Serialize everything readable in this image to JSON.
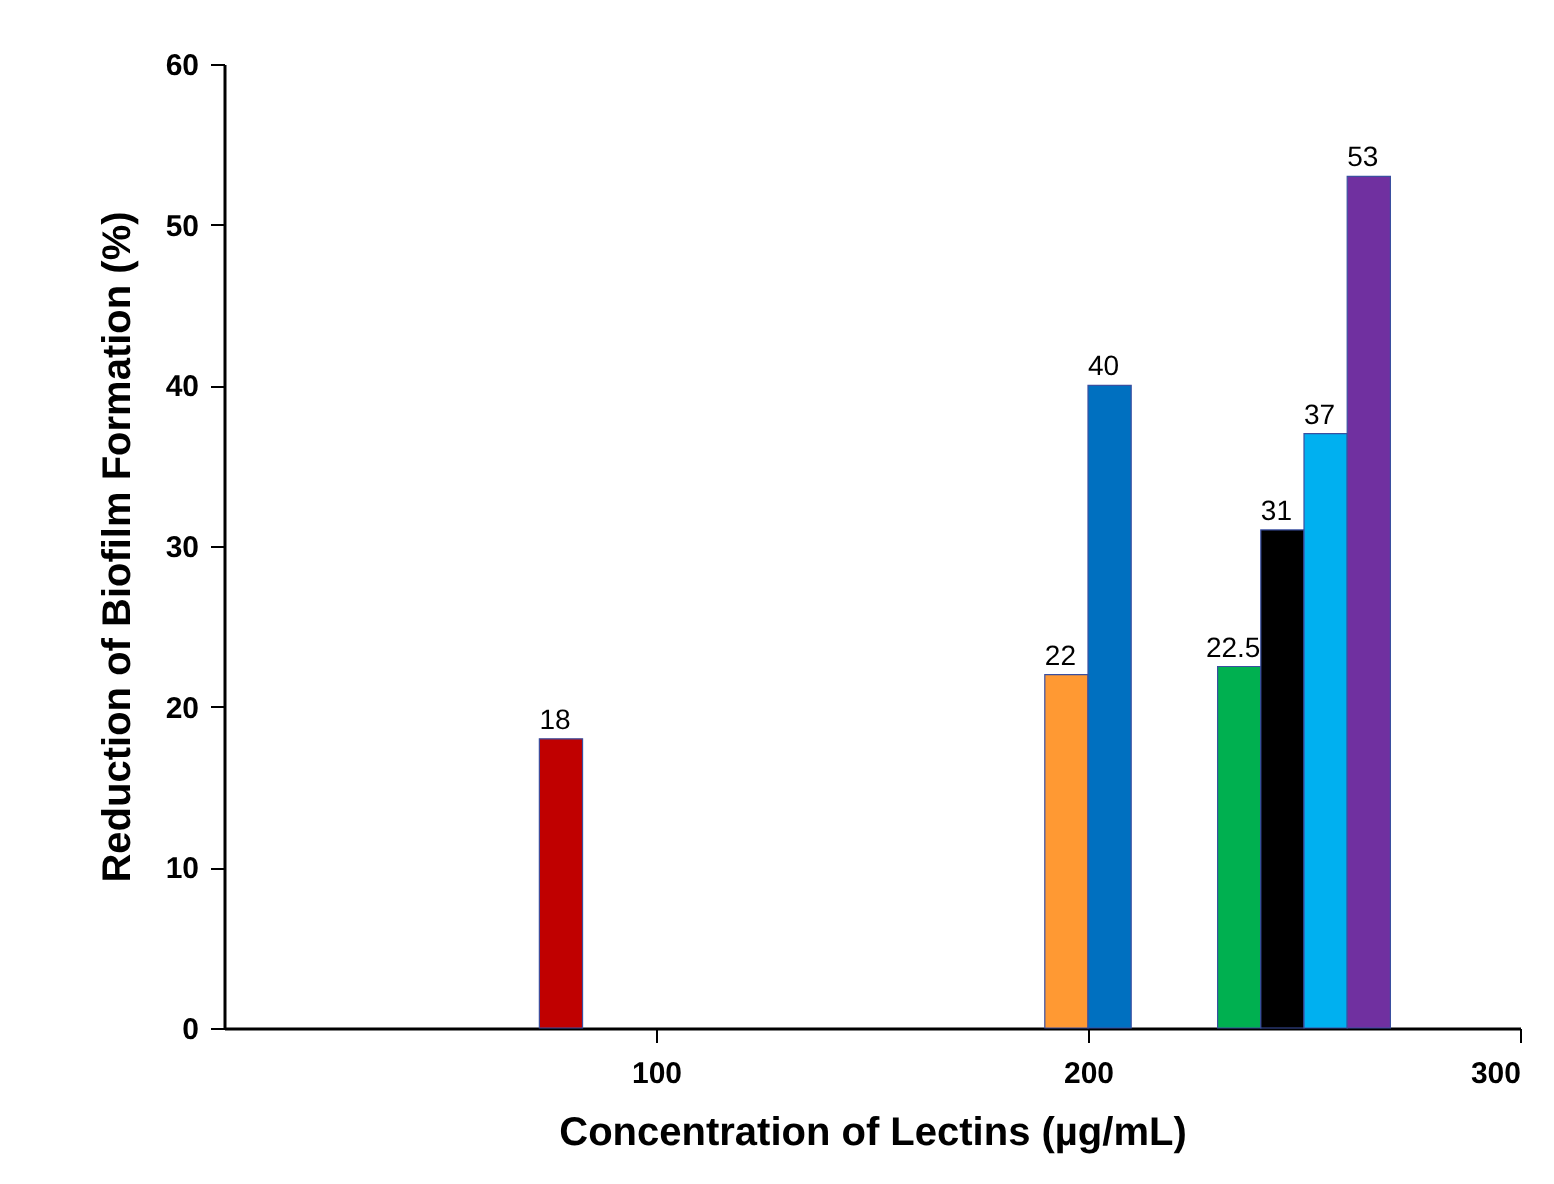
{
  "chart_data": {
    "type": "bar",
    "xlabel": "Concentration of Lectins (µg/mL)",
    "ylabel": "Reduction of Biofilm Formation (%)",
    "x": [
      78,
      195,
      205,
      235,
      245,
      255,
      265
    ],
    "values": [
      18,
      22,
      40,
      22.5,
      31,
      37,
      53
    ],
    "colors": [
      "#c00000",
      "#ff9933",
      "#0070c0",
      "#00b050",
      "#000000",
      "#00b0f0",
      "#7030a0"
    ],
    "xlim": [
      0,
      300
    ],
    "xticks": [
      100,
      200,
      300
    ],
    "ylim": [
      0,
      60
    ],
    "yticks": [
      0,
      10,
      20,
      30,
      40,
      50,
      60
    ],
    "data_labels": true,
    "grid": false
  }
}
